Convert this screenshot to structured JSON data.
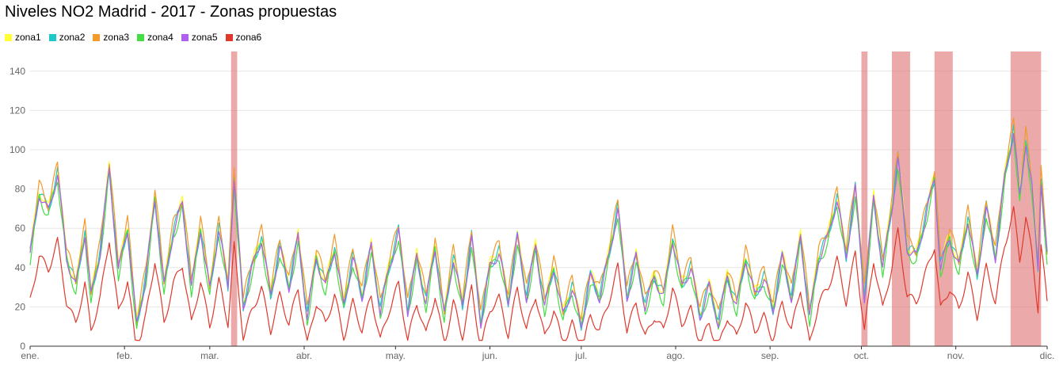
{
  "chart_data": {
    "type": "line",
    "title": "Niveles NO2 Madrid - 2017 - Zonas propuestas",
    "xlabel": "",
    "ylabel": "",
    "x_tick_labels": [
      "ene.",
      "feb.",
      "mar.",
      "abr.",
      "may.",
      "jun.",
      "jul.",
      "ago.",
      "sep.",
      "oct.",
      "nov.",
      "dic."
    ],
    "x_range_days": [
      0,
      334
    ],
    "ylim": [
      0,
      150
    ],
    "y_ticks": [
      0,
      20,
      40,
      60,
      80,
      100,
      120,
      140
    ],
    "grid": true,
    "legend_position": "top-left",
    "highlight_day_ranges": [
      [
        66,
        68
      ],
      [
        273,
        275
      ],
      [
        283,
        289
      ],
      [
        297,
        303
      ],
      [
        322,
        332
      ]
    ],
    "highlight_color": "#e07b7b",
    "series": [
      {
        "name": "zona1",
        "color": "#ffff33",
        "offset": 2
      },
      {
        "name": "zona2",
        "color": "#1ec8c8",
        "offset": 1
      },
      {
        "name": "zona3",
        "color": "#f39a2b",
        "offset": 4
      },
      {
        "name": "zona4",
        "color": "#44dd44",
        "offset": -2
      },
      {
        "name": "zona5",
        "color": "#b05ef0",
        "offset": 0
      },
      {
        "name": "zona6",
        "color": "#e0392c",
        "offset": -14
      }
    ],
    "base_profile": [
      [
        0,
        46
      ],
      [
        3,
        78
      ],
      [
        6,
        68
      ],
      [
        9,
        88
      ],
      [
        12,
        45
      ],
      [
        15,
        30
      ],
      [
        18,
        58
      ],
      [
        20,
        25
      ],
      [
        23,
        48
      ],
      [
        26,
        90
      ],
      [
        29,
        38
      ],
      [
        32,
        60
      ],
      [
        35,
        10
      ],
      [
        38,
        35
      ],
      [
        41,
        75
      ],
      [
        44,
        30
      ],
      [
        47,
        58
      ],
      [
        50,
        72
      ],
      [
        53,
        30
      ],
      [
        56,
        60
      ],
      [
        59,
        28
      ],
      [
        62,
        60
      ],
      [
        65,
        30
      ],
      [
        67,
        85
      ],
      [
        70,
        20
      ],
      [
        73,
        40
      ],
      [
        76,
        55
      ],
      [
        79,
        25
      ],
      [
        82,
        50
      ],
      [
        85,
        30
      ],
      [
        88,
        55
      ],
      [
        91,
        15
      ],
      [
        94,
        45
      ],
      [
        97,
        30
      ],
      [
        100,
        50
      ],
      [
        103,
        20
      ],
      [
        106,
        45
      ],
      [
        109,
        25
      ],
      [
        112,
        50
      ],
      [
        115,
        18
      ],
      [
        118,
        40
      ],
      [
        121,
        58
      ],
      [
        124,
        18
      ],
      [
        127,
        45
      ],
      [
        130,
        22
      ],
      [
        133,
        50
      ],
      [
        136,
        15
      ],
      [
        139,
        45
      ],
      [
        142,
        20
      ],
      [
        145,
        55
      ],
      [
        148,
        12
      ],
      [
        151,
        40
      ],
      [
        154,
        48
      ],
      [
        157,
        22
      ],
      [
        160,
        55
      ],
      [
        163,
        25
      ],
      [
        166,
        50
      ],
      [
        169,
        20
      ],
      [
        172,
        40
      ],
      [
        175,
        15
      ],
      [
        178,
        30
      ],
      [
        181,
        10
      ],
      [
        184,
        35
      ],
      [
        187,
        25
      ],
      [
        190,
        45
      ],
      [
        193,
        70
      ],
      [
        196,
        25
      ],
      [
        199,
        45
      ],
      [
        202,
        20
      ],
      [
        205,
        35
      ],
      [
        208,
        25
      ],
      [
        211,
        55
      ],
      [
        214,
        30
      ],
      [
        217,
        40
      ],
      [
        220,
        15
      ],
      [
        223,
        30
      ],
      [
        226,
        12
      ],
      [
        229,
        35
      ],
      [
        232,
        20
      ],
      [
        235,
        45
      ],
      [
        238,
        25
      ],
      [
        241,
        35
      ],
      [
        244,
        18
      ],
      [
        247,
        45
      ],
      [
        250,
        25
      ],
      [
        253,
        55
      ],
      [
        256,
        15
      ],
      [
        259,
        45
      ],
      [
        262,
        55
      ],
      [
        265,
        75
      ],
      [
        268,
        45
      ],
      [
        271,
        80
      ],
      [
        274,
        25
      ],
      [
        277,
        75
      ],
      [
        280,
        40
      ],
      [
        283,
        70
      ],
      [
        285,
        95
      ],
      [
        288,
        50
      ],
      [
        291,
        45
      ],
      [
        294,
        65
      ],
      [
        297,
        85
      ],
      [
        299,
        40
      ],
      [
        302,
        55
      ],
      [
        305,
        40
      ],
      [
        308,
        65
      ],
      [
        311,
        35
      ],
      [
        314,
        70
      ],
      [
        317,
        45
      ],
      [
        320,
        85
      ],
      [
        323,
        110
      ],
      [
        325,
        75
      ],
      [
        327,
        105
      ],
      [
        329,
        80
      ],
      [
        331,
        40
      ],
      [
        332,
        85
      ],
      [
        334,
        45
      ]
    ]
  }
}
